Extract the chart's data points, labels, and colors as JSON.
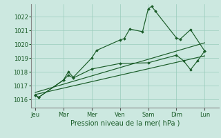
{
  "background_color": "#cce8e0",
  "grid_color": "#99ccbb",
  "line_color": "#1a5c28",
  "title": "Pression niveau de la mer( hPa )",
  "yticks": [
    1016,
    1017,
    1018,
    1019,
    1020,
    1021,
    1022
  ],
  "ylim": [
    1015.4,
    1022.9
  ],
  "xlim": [
    -0.3,
    13.0
  ],
  "x_labels": [
    "Jeu",
    "Mar",
    "Mer",
    "Ven",
    "Sam",
    "Dim",
    "Lun"
  ],
  "x_positions": [
    0,
    2,
    4,
    6,
    8,
    10,
    12
  ],
  "series_main": {
    "x": [
      0,
      0.25,
      2.0,
      2.35,
      2.7,
      4.0,
      4.35,
      6.0,
      6.3,
      6.7,
      7.6,
      8.0,
      8.25,
      8.5,
      10.0,
      10.25,
      11.0,
      12.0
    ],
    "y": [
      1016.3,
      1016.15,
      1017.4,
      1018.0,
      1017.6,
      1019.0,
      1019.55,
      1020.3,
      1020.4,
      1021.1,
      1020.9,
      1022.55,
      1022.75,
      1022.4,
      1020.45,
      1020.35,
      1021.05,
      1019.5
    ]
  },
  "series_low": {
    "x": [
      0,
      0.25,
      2.0,
      2.35,
      2.7,
      4.0,
      6.0,
      8.0,
      10.0,
      10.5,
      11.0,
      11.5,
      12.0
    ],
    "y": [
      1016.3,
      1016.15,
      1017.4,
      1017.75,
      1017.55,
      1018.2,
      1018.6,
      1018.65,
      1019.2,
      1018.8,
      1018.15,
      1018.8,
      1019.5
    ]
  },
  "trend1": {
    "x": [
      0,
      12
    ],
    "y": [
      1016.35,
      1019.15
    ]
  },
  "trend2": {
    "x": [
      0,
      12
    ],
    "y": [
      1016.5,
      1020.1
    ]
  }
}
